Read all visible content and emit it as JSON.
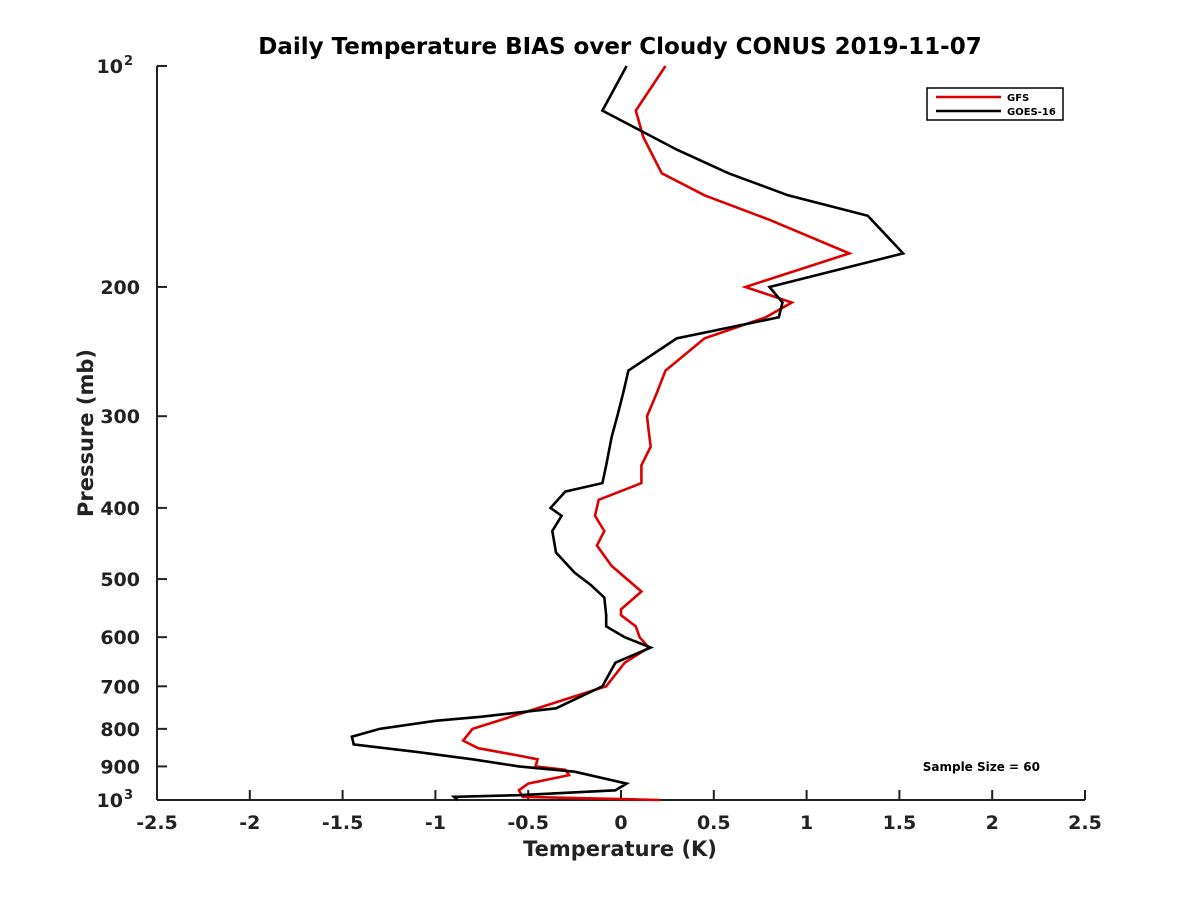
{
  "chart_data": {
    "type": "line",
    "title": "Daily Temperature BIAS over Cloudy CONUS 2019-11-07",
    "xlabel": "Temperature (K)",
    "ylabel": "Pressure (mb)",
    "xlim": [
      -2.5,
      2.5
    ],
    "ylim": [
      1000,
      100
    ],
    "yscale": "log",
    "y_reversed": true,
    "x_ticks": [
      -2.5,
      -2,
      -1.5,
      -1,
      -0.5,
      0,
      0.5,
      1,
      1.5,
      2,
      2.5
    ],
    "x_tick_labels": [
      "-2.5",
      "-2",
      "-1.5",
      "-1",
      "-0.5",
      "0",
      "0.5",
      "1",
      "1.5",
      "2",
      "2.5"
    ],
    "y_ticks": [
      {
        "value": 100,
        "base": "10",
        "exp": "2"
      },
      {
        "value": 200,
        "label": "200"
      },
      {
        "value": 300,
        "label": "300"
      },
      {
        "value": 400,
        "label": "400"
      },
      {
        "value": 500,
        "label": "500"
      },
      {
        "value": 600,
        "label": "600"
      },
      {
        "value": 700,
        "label": "700"
      },
      {
        "value": 800,
        "label": "800"
      },
      {
        "value": 900,
        "label": "900"
      },
      {
        "value": 1000,
        "base": "10",
        "exp": "3"
      }
    ],
    "grid": false,
    "legend_position": "top-right",
    "series": [
      {
        "name": "GFS",
        "color": "#dd0000",
        "points": [
          [
            0.24,
            100
          ],
          [
            0.08,
            115
          ],
          [
            0.12,
            125
          ],
          [
            0.22,
            140
          ],
          [
            0.45,
            150
          ],
          [
            0.8,
            162
          ],
          [
            1.23,
            180
          ],
          [
            0.67,
            200
          ],
          [
            0.92,
            210
          ],
          [
            0.78,
            220
          ],
          [
            0.45,
            235
          ],
          [
            0.24,
            260
          ],
          [
            0.19,
            280
          ],
          [
            0.14,
            300
          ],
          [
            0.15,
            315
          ],
          [
            0.16,
            330
          ],
          [
            0.11,
            350
          ],
          [
            0.11,
            370
          ],
          [
            -0.12,
            390
          ],
          [
            -0.14,
            410
          ],
          [
            -0.09,
            430
          ],
          [
            -0.13,
            450
          ],
          [
            -0.05,
            480
          ],
          [
            0.11,
            520
          ],
          [
            0.0,
            550
          ],
          [
            0.0,
            560
          ],
          [
            0.08,
            580
          ],
          [
            0.1,
            600
          ],
          [
            0.15,
            620
          ],
          [
            0.02,
            650
          ],
          [
            -0.08,
            700
          ],
          [
            -0.45,
            750
          ],
          [
            -0.8,
            800
          ],
          [
            -0.85,
            830
          ],
          [
            -0.77,
            850
          ],
          [
            -0.55,
            870
          ],
          [
            -0.45,
            880
          ],
          [
            -0.46,
            900
          ],
          [
            -0.3,
            910
          ],
          [
            -0.28,
            925
          ],
          [
            -0.5,
            950
          ],
          [
            -0.55,
            970
          ],
          [
            -0.53,
            990
          ],
          [
            0.21,
            1000
          ]
        ]
      },
      {
        "name": "GOES-16",
        "color": "#000000",
        "points": [
          [
            0.03,
            100
          ],
          [
            -0.1,
            115
          ],
          [
            0.3,
            130
          ],
          [
            0.58,
            140
          ],
          [
            0.9,
            150
          ],
          [
            1.33,
            160
          ],
          [
            1.52,
            180
          ],
          [
            0.8,
            200
          ],
          [
            0.87,
            210
          ],
          [
            0.85,
            220
          ],
          [
            0.3,
            235
          ],
          [
            0.04,
            260
          ],
          [
            0.01,
            280
          ],
          [
            -0.02,
            300
          ],
          [
            -0.05,
            320
          ],
          [
            -0.08,
            350
          ],
          [
            -0.1,
            370
          ],
          [
            -0.3,
            380
          ],
          [
            -0.38,
            400
          ],
          [
            -0.32,
            410
          ],
          [
            -0.37,
            430
          ],
          [
            -0.35,
            460
          ],
          [
            -0.25,
            490
          ],
          [
            -0.16,
            510
          ],
          [
            -0.09,
            530
          ],
          [
            -0.08,
            560
          ],
          [
            -0.08,
            580
          ],
          [
            0.02,
            600
          ],
          [
            0.16,
            620
          ],
          [
            -0.03,
            650
          ],
          [
            -0.1,
            700
          ],
          [
            -0.35,
            750
          ],
          [
            -0.75,
            770
          ],
          [
            -1.0,
            780
          ],
          [
            -1.3,
            800
          ],
          [
            -1.45,
            820
          ],
          [
            -1.44,
            840
          ],
          [
            -1.1,
            860
          ],
          [
            -0.8,
            880
          ],
          [
            -0.55,
            900
          ],
          [
            -0.25,
            915
          ],
          [
            0.03,
            950
          ],
          [
            -0.03,
            970
          ],
          [
            -0.55,
            985
          ],
          [
            -0.9,
            990
          ],
          [
            -0.88,
            1000
          ]
        ]
      }
    ],
    "annotations": [
      "Sample Size = 60"
    ]
  }
}
